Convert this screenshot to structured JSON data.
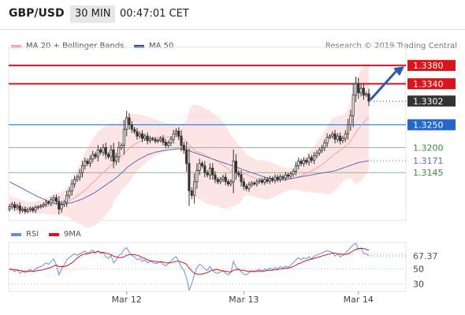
{
  "header": {
    "pair": "GBP/USD",
    "timeframe": "30 MIN",
    "clock": "00:47:01 CET"
  },
  "legend": {
    "ma20_bollinger": "MA 20 + Bollinger Bands",
    "ma50": "MA 50",
    "rsi": "RSI",
    "ma9": "9MA",
    "credit": "Research © 2019 Trading Central"
  },
  "colors": {
    "resistance": "#d9151b",
    "pivot": "#2566c9",
    "support": "#7ec37e",
    "current": "#333333",
    "ma50": "#5b6fb8",
    "bollinger_fill": "#fde1e1",
    "ma20": "#f2a3a3",
    "candle_up": "#ffffff",
    "candle_down": "#333333",
    "rsi_line": "#6b8fd6",
    "rsi_ma": "#d9151b"
  },
  "chart_data": {
    "type": "candlestick",
    "x_ticks": [
      "Mar 12",
      "Mar 13",
      "Mar 14"
    ],
    "ylim": [
      1.304,
      1.342
    ],
    "levels": [
      {
        "label": "1.3380",
        "value": 1.338,
        "kind": "resistance"
      },
      {
        "label": "1.3340",
        "value": 1.334,
        "kind": "resistance"
      },
      {
        "label": "1.3302",
        "value": 1.3302,
        "kind": "current"
      },
      {
        "label": "1.3250",
        "value": 1.325,
        "kind": "pivot"
      },
      {
        "label": "1.3200",
        "value": 1.32,
        "kind": "support"
      },
      {
        "label": "1.3171",
        "value": 1.3171,
        "kind": "ma50"
      },
      {
        "label": "1.3145",
        "value": 1.3145,
        "kind": "support"
      }
    ],
    "close": [
      1.307,
      1.3075,
      1.3068,
      1.3072,
      1.3062,
      1.3065,
      1.306,
      1.3063,
      1.3066,
      1.3062,
      1.3068,
      1.307,
      1.3072,
      1.3075,
      1.308,
      1.3078,
      1.3085,
      1.309,
      1.3082,
      1.3065,
      1.3075,
      1.308,
      1.3095,
      1.3105,
      1.312,
      1.313,
      1.3135,
      1.3145,
      1.316,
      1.317,
      1.3165,
      1.3175,
      1.3185,
      1.318,
      1.3195,
      1.319,
      1.32,
      1.3185,
      1.318,
      1.3195,
      1.317,
      1.318,
      1.32,
      1.3205,
      1.324,
      1.3265,
      1.325,
      1.324,
      1.3235,
      1.3225,
      1.323,
      1.322,
      1.3225,
      1.3215,
      1.322,
      1.3218,
      1.3214,
      1.3216,
      1.322,
      1.3212,
      1.3205,
      1.321,
      1.3218,
      1.323,
      1.3236,
      1.3225,
      1.3205,
      1.3195,
      1.3165,
      1.3105,
      1.3095,
      1.3125,
      1.315,
      1.3165,
      1.316,
      1.3145,
      1.314,
      1.3155,
      1.314,
      1.313,
      1.3125,
      1.313,
      1.3135,
      1.3125,
      1.312,
      1.3125,
      1.317,
      1.3145,
      1.314,
      1.3125,
      1.3115,
      1.311,
      1.3118,
      1.3122,
      1.312,
      1.3125,
      1.3128,
      1.3124,
      1.313,
      1.3126,
      1.3132,
      1.3128,
      1.3135,
      1.313,
      1.3136,
      1.3133,
      1.314,
      1.3137,
      1.3142,
      1.3148,
      1.316,
      1.317,
      1.3165,
      1.3172,
      1.3168,
      1.3178,
      1.3172,
      1.3182,
      1.3188,
      1.3194,
      1.32,
      1.321,
      1.3222,
      1.3225,
      1.323,
      1.3218,
      1.3225,
      1.3215,
      1.322,
      1.323,
      1.325,
      1.327,
      1.3315,
      1.334,
      1.332,
      1.333,
      1.3315,
      1.3318,
      1.3302
    ],
    "ma20": [
      1.3077,
      1.3076,
      1.3074,
      1.3073,
      1.3071,
      1.307,
      1.3069,
      1.3068,
      1.3068,
      1.3068,
      1.3068,
      1.3069,
      1.307,
      1.3071,
      1.3072,
      1.3073,
      1.3074,
      1.3076,
      1.3077,
      1.3076,
      1.3077,
      1.3078,
      1.308,
      1.3083,
      1.3086,
      1.309,
      1.3094,
      1.3098,
      1.3102,
      1.3107,
      1.3112,
      1.3117,
      1.3123,
      1.3128,
      1.3134,
      1.314,
      1.3146,
      1.315,
      1.3155,
      1.3161,
      1.3166,
      1.3171,
      1.3176,
      1.3181,
      1.3187,
      1.3193,
      1.3198,
      1.3203,
      1.3207,
      1.321,
      1.3213,
      1.3215,
      1.3217,
      1.3219,
      1.322,
      1.3221,
      1.3222,
      1.3222,
      1.3223,
      1.3223,
      1.3223,
      1.3223,
      1.3223,
      1.3224,
      1.3224,
      1.3223,
      1.3221,
      1.3218,
      1.3213,
      1.3206,
      1.3199,
      1.3195,
      1.3191,
      1.3189,
      1.3186,
      1.3183,
      1.318,
      1.3178,
      1.3175,
      1.3172,
      1.3169,
      1.3165,
      1.3161,
      1.3157,
      1.3152,
      1.3149,
      1.3147,
      1.3144,
      1.3142,
      1.3141,
      1.3142,
      1.3141,
      1.3138,
      1.3136,
      1.3134,
      1.3132,
      1.3131,
      1.313,
      1.3129,
      1.3128,
      1.3128,
      1.3128,
      1.3128,
      1.3128,
      1.3129,
      1.3129,
      1.313,
      1.313,
      1.3131,
      1.3132,
      1.3134,
      1.3136,
      1.3138,
      1.3141,
      1.3143,
      1.3146,
      1.3149,
      1.3152,
      1.3155,
      1.3159,
      1.3163,
      1.3167,
      1.3172,
      1.3177,
      1.3182,
      1.3186,
      1.319,
      1.3194,
      1.3198,
      1.3203,
      1.3208,
      1.3215,
      1.3224,
      1.3233,
      1.3241,
      1.3248,
      1.3255,
      1.3262,
      1.3268
    ],
    "bb_upper": [
      1.3094,
      1.3092,
      1.309,
      1.3089,
      1.3087,
      1.3085,
      1.3083,
      1.3081,
      1.308,
      1.308,
      1.3081,
      1.3083,
      1.3085,
      1.3087,
      1.309,
      1.3092,
      1.3095,
      1.3099,
      1.3101,
      1.3101,
      1.3103,
      1.3106,
      1.3112,
      1.312,
      1.313,
      1.3142,
      1.3153,
      1.3163,
      1.3176,
      1.3189,
      1.3199,
      1.3209,
      1.3219,
      1.3226,
      1.3235,
      1.324,
      1.3245,
      1.3248,
      1.325,
      1.3254,
      1.3252,
      1.3252,
      1.3254,
      1.3256,
      1.3262,
      1.327,
      1.3272,
      1.3273,
      1.3274,
      1.3272,
      1.3272,
      1.327,
      1.327,
      1.3268,
      1.3266,
      1.3264,
      1.3262,
      1.326,
      1.3259,
      1.3257,
      1.3255,
      1.3253,
      1.3252,
      1.3252,
      1.3252,
      1.3251,
      1.3252,
      1.3254,
      1.3262,
      1.328,
      1.3292,
      1.3294,
      1.3294,
      1.3292,
      1.329,
      1.3287,
      1.3284,
      1.328,
      1.3276,
      1.3272,
      1.3268,
      1.3262,
      1.3256,
      1.3248,
      1.3238,
      1.3228,
      1.3222,
      1.3214,
      1.3207,
      1.32,
      1.3192,
      1.3186,
      1.3182,
      1.3178,
      1.3176,
      1.3174,
      1.3173,
      1.3172,
      1.3171,
      1.317,
      1.3168,
      1.3166,
      1.3164,
      1.3161,
      1.3159,
      1.3157,
      1.3156,
      1.3155,
      1.3155,
      1.3156,
      1.316,
      1.3167,
      1.3172,
      1.3179,
      1.3183,
      1.319,
      1.3195,
      1.3203,
      1.321,
      1.3218,
      1.3226,
      1.3236,
      1.3248,
      1.3257,
      1.3264,
      1.3266,
      1.3269,
      1.327,
      1.3272,
      1.3276,
      1.3285,
      1.3298,
      1.3322,
      1.3346,
      1.3358,
      1.337,
      1.3376,
      1.3382,
      1.3385
    ],
    "bb_lower": [
      1.306,
      1.306,
      1.3058,
      1.3057,
      1.3055,
      1.3055,
      1.3055,
      1.3055,
      1.3056,
      1.3056,
      1.3055,
      1.3055,
      1.3055,
      1.3055,
      1.3054,
      1.3054,
      1.3053,
      1.3053,
      1.3053,
      1.3051,
      1.3051,
      1.305,
      1.3048,
      1.3046,
      1.3042,
      1.3038,
      1.3035,
      1.3033,
      1.3028,
      1.3025,
      1.3025,
      1.3025,
      1.3027,
      1.303,
      1.3033,
      1.304,
      1.3047,
      1.3052,
      1.306,
      1.3068,
      1.308,
      1.309,
      1.3098,
      1.3106,
      1.3112,
      1.3116,
      1.3124,
      1.3133,
      1.314,
      1.3148,
      1.3154,
      1.316,
      1.3164,
      1.317,
      1.3174,
      1.3178,
      1.3182,
      1.3184,
      1.3187,
      1.3189,
      1.3191,
      1.3193,
      1.3194,
      1.3196,
      1.3196,
      1.3195,
      1.319,
      1.3182,
      1.3164,
      1.3132,
      1.3106,
      1.3096,
      1.3088,
      1.3086,
      1.3082,
      1.3079,
      1.3076,
      1.3076,
      1.3074,
      1.3072,
      1.307,
      1.3068,
      1.3066,
      1.3066,
      1.3066,
      1.307,
      1.3072,
      1.3074,
      1.3077,
      1.3082,
      1.3092,
      1.3096,
      1.3094,
      1.3094,
      1.3092,
      1.309,
      1.3089,
      1.3088,
      1.3087,
      1.3086,
      1.3088,
      1.309,
      1.3092,
      1.3095,
      1.3099,
      1.3101,
      1.3104,
      1.3105,
      1.3107,
      1.3108,
      1.3108,
      1.3105,
      1.3104,
      1.3103,
      1.3103,
      1.3102,
      1.3103,
      1.3101,
      1.31,
      1.31,
      1.31,
      1.3098,
      1.3096,
      1.3097,
      1.31,
      1.3106,
      1.3111,
      1.3118,
      1.3124,
      1.313,
      1.3131,
      1.3132,
      1.3126,
      1.312,
      1.3124,
      1.3126,
      1.3134,
      1.3142,
      1.3151
    ],
    "ma50": [
      1.3125,
      1.3122,
      1.3119,
      1.3116,
      1.3113,
      1.311,
      1.3107,
      1.3104,
      1.3101,
      1.3098,
      1.3095,
      1.3092,
      1.309,
      1.3087,
      1.3085,
      1.3082,
      1.308,
      1.3078,
      1.3077,
      1.3076,
      1.3076,
      1.3076,
      1.3077,
      1.3078,
      1.3079,
      1.3081,
      1.3083,
      1.3085,
      1.3087,
      1.309,
      1.3093,
      1.3096,
      1.3099,
      1.3102,
      1.3106,
      1.311,
      1.3114,
      1.3118,
      1.3122,
      1.3126,
      1.313,
      1.3134,
      1.3139,
      1.3144,
      1.3149,
      1.3155,
      1.316,
      1.3164,
      1.3168,
      1.3172,
      1.3175,
      1.3178,
      1.3181,
      1.3184,
      1.3186,
      1.3188,
      1.319,
      1.3191,
      1.3192,
      1.3193,
      1.3194,
      1.3195,
      1.3196,
      1.3196,
      1.3197,
      1.3197,
      1.3197,
      1.3196,
      1.3195,
      1.3193,
      1.3191,
      1.3189,
      1.3187,
      1.3185,
      1.3183,
      1.3181,
      1.3179,
      1.3177,
      1.3175,
      1.3173,
      1.3171,
      1.3169,
      1.3167,
      1.3165,
      1.3163,
      1.3161,
      1.3159,
      1.3157,
      1.3155,
      1.3153,
      1.3151,
      1.3149,
      1.3147,
      1.3145,
      1.3143,
      1.3141,
      1.3139,
      1.3137,
      1.3135,
      1.3134,
      1.3133,
      1.3132,
      1.3131,
      1.313,
      1.313,
      1.313,
      1.313,
      1.3131,
      1.3132,
      1.3133,
      1.3134,
      1.3135,
      1.3136,
      1.3137,
      1.3138,
      1.3139,
      1.314,
      1.3141,
      1.3142,
      1.3143,
      1.3144,
      1.3145,
      1.3146,
      1.3147,
      1.3148,
      1.3149,
      1.3151,
      1.3153,
      1.3155,
      1.3157,
      1.3159,
      1.3161,
      1.3163,
      1.3165,
      1.3167,
      1.3168,
      1.3169,
      1.317,
      1.3171
    ],
    "rsi": {
      "ticks": [
        30,
        50
      ],
      "current_label": "67.37",
      "ylim": [
        20,
        85
      ]
    },
    "rsi_values": [
      48,
      50,
      46,
      49,
      44,
      47,
      45,
      47,
      49,
      46,
      50,
      52,
      53,
      55,
      58,
      56,
      60,
      63,
      55,
      42,
      50,
      55,
      62,
      65,
      68,
      70,
      68,
      70,
      72,
      74,
      70,
      73,
      75,
      71,
      74,
      70,
      72,
      66,
      64,
      68,
      58,
      62,
      68,
      70,
      76,
      78,
      72,
      68,
      66,
      62,
      64,
      60,
      62,
      58,
      60,
      59,
      57,
      58,
      60,
      56,
      54,
      57,
      60,
      64,
      66,
      60,
      52,
      48,
      38,
      22,
      30,
      42,
      52,
      56,
      54,
      50,
      48,
      53,
      48,
      45,
      44,
      46,
      48,
      44,
      42,
      45,
      60,
      52,
      50,
      46,
      43,
      42,
      45,
      47,
      46,
      48,
      49,
      47,
      50,
      48,
      51,
      49,
      52,
      50,
      53,
      51,
      54,
      52,
      55,
      58,
      62,
      65,
      62,
      65,
      63,
      66,
      63,
      67,
      68,
      70,
      71,
      73,
      74,
      73,
      72,
      67,
      70,
      66,
      68,
      71,
      75,
      78,
      82,
      84,
      76,
      78,
      70,
      70,
      67.37
    ],
    "rsi_ma": [
      50,
      49,
      49,
      48,
      48,
      47,
      47,
      47,
      47,
      47,
      47,
      48,
      48,
      49,
      50,
      51,
      52,
      54,
      55,
      53,
      53,
      53,
      54,
      56,
      58,
      61,
      64,
      67,
      69,
      70,
      70,
      71,
      72,
      72,
      73,
      72,
      72,
      71,
      70,
      69,
      67,
      66,
      65,
      65,
      66,
      68,
      69,
      69,
      69,
      68,
      67,
      65,
      64,
      62,
      61,
      60,
      60,
      59,
      59,
      59,
      58,
      58,
      58,
      59,
      60,
      60,
      59,
      58,
      56,
      51,
      47,
      44,
      43,
      43,
      43,
      44,
      45,
      47,
      48,
      49,
      49,
      48,
      47,
      47,
      46,
      46,
      48,
      49,
      49,
      48,
      48,
      47,
      47,
      47,
      47,
      47,
      47,
      47,
      47,
      48,
      48,
      48,
      49,
      49,
      50,
      50,
      51,
      51,
      52,
      53,
      55,
      57,
      58,
      60,
      61,
      62,
      63,
      64,
      65,
      66,
      67,
      68,
      69,
      70,
      71,
      71,
      70,
      70,
      69,
      69,
      70,
      72,
      74,
      76,
      77,
      77,
      77,
      76,
      75
    ]
  }
}
